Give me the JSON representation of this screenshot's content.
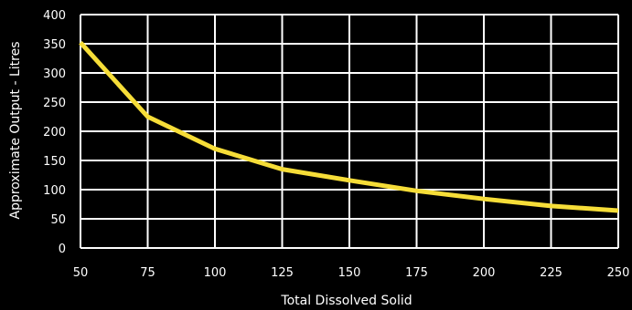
{
  "chart_data": {
    "type": "line",
    "xlabel": "Total Dissolved Solid",
    "ylabel": "Approximate Output - Litres",
    "xlim": [
      50,
      250
    ],
    "ylim": [
      0,
      400
    ],
    "x_ticks": [
      50,
      75,
      100,
      125,
      150,
      175,
      200,
      225,
      250
    ],
    "y_ticks": [
      0,
      50,
      100,
      150,
      200,
      250,
      300,
      350,
      400
    ],
    "grid": true,
    "background": "#000000",
    "grid_color": "#ffffff",
    "line_color": "#f6dd38",
    "series": [
      {
        "x": [
          50,
          75,
          100,
          125,
          150,
          175,
          200,
          225,
          250
        ],
        "y": [
          352,
          225,
          170,
          135,
          116,
          98,
          84,
          72,
          64
        ]
      }
    ]
  }
}
